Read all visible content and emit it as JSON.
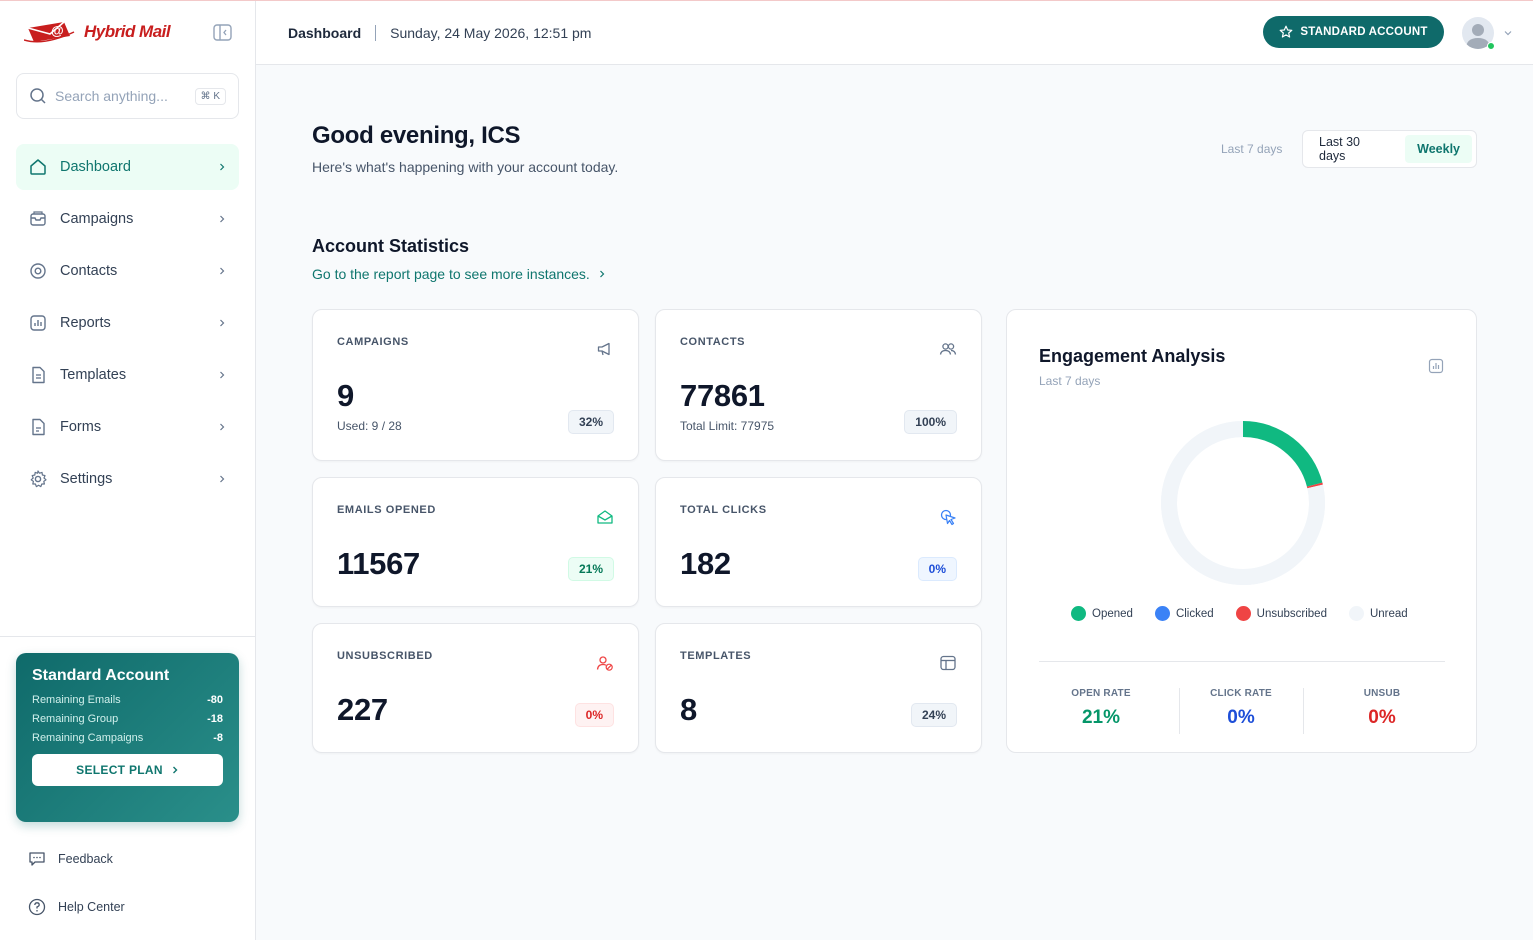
{
  "brand": {
    "name": "Hybrid Mail"
  },
  "search": {
    "placeholder": "Search anything...",
    "shortcut": "⌘ K"
  },
  "nav": [
    {
      "label": "Dashboard",
      "icon": "home-icon",
      "active": true
    },
    {
      "label": "Campaigns",
      "icon": "mailbox-icon"
    },
    {
      "label": "Contacts",
      "icon": "at-sign-icon"
    },
    {
      "label": "Reports",
      "icon": "report-chart-icon"
    },
    {
      "label": "Templates",
      "icon": "document-icon"
    },
    {
      "label": "Forms",
      "icon": "form-icon"
    },
    {
      "label": "Settings",
      "icon": "gear-icon"
    }
  ],
  "plan": {
    "title": "Standard Account",
    "rows": [
      {
        "label": "Remaining Emails",
        "value": "-80"
      },
      {
        "label": "Remaining Group",
        "value": "-18"
      },
      {
        "label": "Remaining Campaigns",
        "value": "-8"
      }
    ],
    "button": "SELECT PLAN"
  },
  "footer_links": {
    "feedback": "Feedback",
    "help": "Help Center"
  },
  "header": {
    "breadcrumb": "Dashboard",
    "datetime": "Sunday, 24 May 2026, 12:51 pm",
    "account_button": "STANDARD ACCOUNT"
  },
  "greeting": {
    "title": "Good evening, ICS",
    "subtitle": "Here's what's happening with your account today."
  },
  "range": {
    "label": "Last 7 days",
    "options": [
      "Last 30 days",
      "Weekly"
    ],
    "selected": "Weekly"
  },
  "stats_section": {
    "title": "Account Statistics",
    "link": "Go to the report page to see more instances."
  },
  "cards": [
    {
      "label": "CAMPAIGNS",
      "value": "9",
      "sub": "Used: 9 / 28",
      "badge": "32%",
      "tone": "gray",
      "icon": "megaphone-icon"
    },
    {
      "label": "CONTACTS",
      "value": "77861",
      "sub": "Total Limit: 77975",
      "badge": "100%",
      "tone": "gray",
      "icon": "users-icon"
    },
    {
      "label": "EMAILS OPENED",
      "value": "11567",
      "sub": "",
      "badge": "21%",
      "tone": "green",
      "icon": "mail-open-icon"
    },
    {
      "label": "TOTAL CLICKS",
      "value": "182",
      "sub": "",
      "badge": "0%",
      "tone": "blue",
      "icon": "cursor-click-icon"
    },
    {
      "label": "UNSUBSCRIBED",
      "value": "227",
      "sub": "",
      "badge": "0%",
      "tone": "red",
      "icon": "user-remove-icon"
    },
    {
      "label": "TEMPLATES",
      "value": "8",
      "sub": "",
      "badge": "24%",
      "tone": "gray",
      "icon": "layout-icon"
    }
  ],
  "engagement": {
    "title": "Engagement Analysis",
    "subtitle": "Last 7 days",
    "legend": [
      {
        "label": "Opened",
        "color": "#10b981"
      },
      {
        "label": "Clicked",
        "color": "#3b82f6"
      },
      {
        "label": "Unsubscribed",
        "color": "#ef4444"
      },
      {
        "label": "Unread",
        "color": "#f1f5f9"
      }
    ],
    "metrics": [
      {
        "label": "OPEN RATE",
        "value": "21%",
        "color": "#059669"
      },
      {
        "label": "CLICK RATE",
        "value": "0%",
        "color": "#1d4ed8"
      },
      {
        "label": "UNSUB",
        "value": "0%",
        "color": "#dc2626"
      }
    ]
  },
  "chart_data": {
    "type": "pie",
    "categories": [
      "Opened",
      "Clicked",
      "Unsubscribed",
      "Unread"
    ],
    "values": [
      0.21,
      0.0,
      0.004,
      0.786
    ],
    "title": "Engagement Analysis"
  }
}
